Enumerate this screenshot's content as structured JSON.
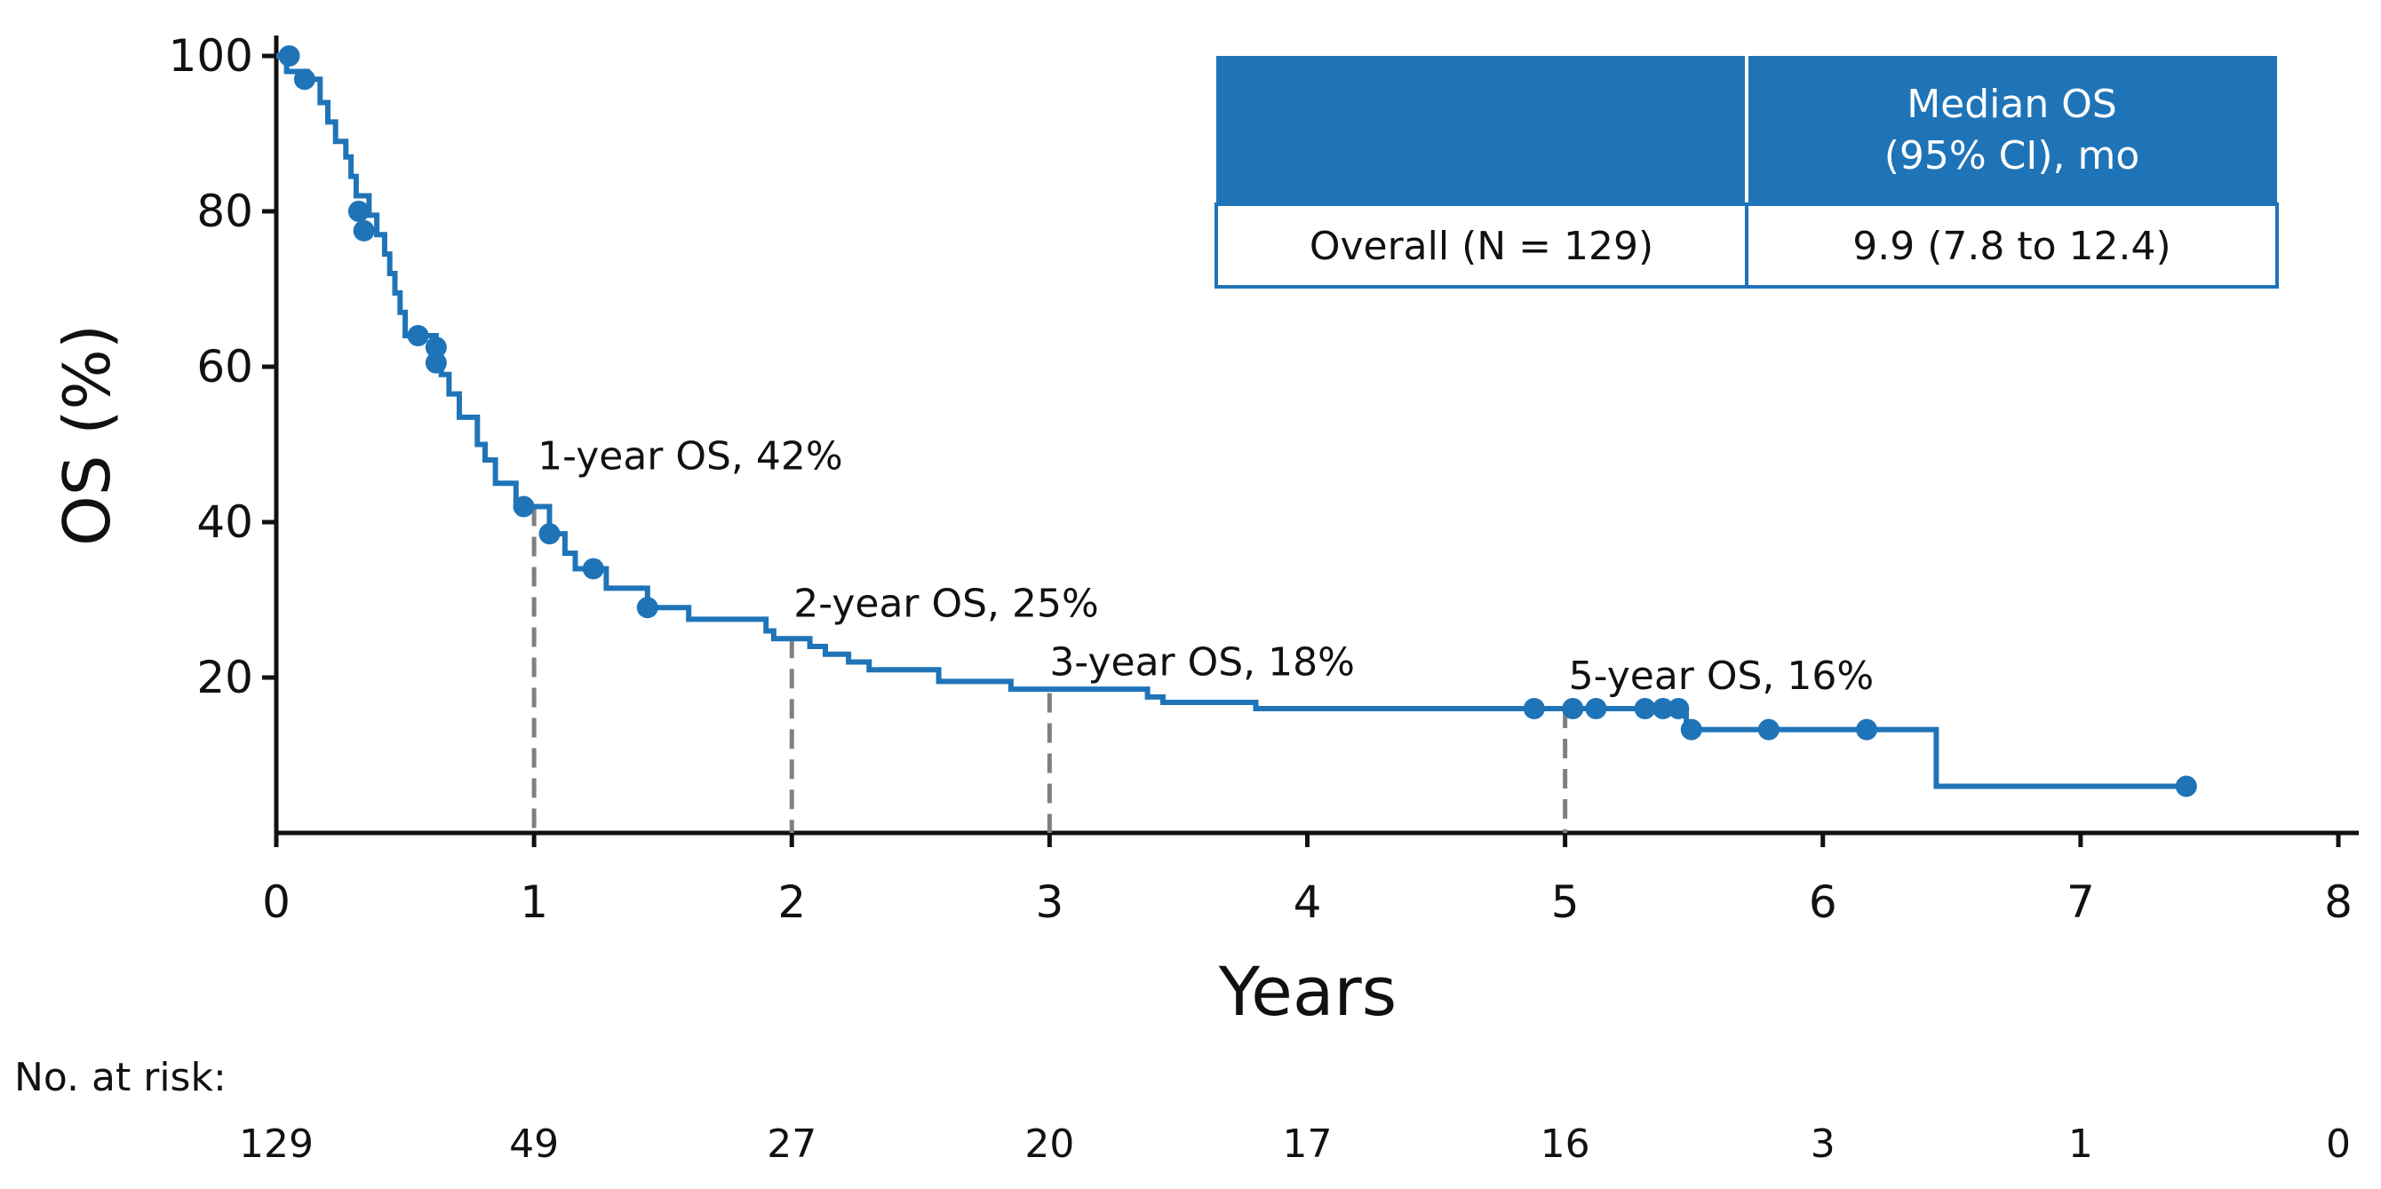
{
  "chart_data": {
    "type": "line",
    "xlabel": "Years",
    "ylabel": "OS (%)",
    "xlim": [
      0,
      8
    ],
    "ylim": [
      0,
      100
    ],
    "x_ticks": [
      0,
      1,
      2,
      3,
      4,
      5,
      6,
      7,
      8
    ],
    "y_ticks": [
      20,
      40,
      60,
      80,
      100
    ],
    "grid": false,
    "colors": {
      "curve": "#1f74b8",
      "guides": "#808080",
      "table_header": "#1f74b8"
    },
    "series": [
      {
        "step": [
          [
            0,
            100
          ],
          [
            0.04,
            100
          ],
          [
            0.04,
            98
          ],
          [
            0.12,
            98
          ],
          [
            0.12,
            97
          ],
          [
            0.17,
            97
          ],
          [
            0.17,
            94
          ],
          [
            0.2,
            94
          ],
          [
            0.2,
            91.5
          ],
          [
            0.23,
            91.5
          ],
          [
            0.23,
            89
          ],
          [
            0.27,
            89
          ],
          [
            0.27,
            87
          ],
          [
            0.29,
            87
          ],
          [
            0.29,
            84.5
          ],
          [
            0.31,
            84.5
          ],
          [
            0.31,
            82
          ],
          [
            0.36,
            82
          ],
          [
            0.36,
            79.5
          ],
          [
            0.39,
            79.5
          ],
          [
            0.39,
            77
          ],
          [
            0.42,
            77
          ],
          [
            0.42,
            74.5
          ],
          [
            0.44,
            74.5
          ],
          [
            0.44,
            72
          ],
          [
            0.46,
            72
          ],
          [
            0.46,
            69.5
          ],
          [
            0.48,
            69.5
          ],
          [
            0.48,
            67
          ],
          [
            0.5,
            67
          ],
          [
            0.5,
            64
          ],
          [
            0.62,
            64
          ],
          [
            0.62,
            61
          ],
          [
            0.64,
            61
          ],
          [
            0.64,
            59
          ],
          [
            0.67,
            59
          ],
          [
            0.67,
            56.5
          ],
          [
            0.71,
            56.5
          ],
          [
            0.71,
            53.5
          ],
          [
            0.78,
            53.5
          ],
          [
            0.78,
            50
          ],
          [
            0.81,
            50
          ],
          [
            0.81,
            48
          ],
          [
            0.85,
            48
          ],
          [
            0.85,
            45
          ],
          [
            0.93,
            45
          ],
          [
            0.93,
            42
          ],
          [
            1.06,
            42
          ],
          [
            1.06,
            38.5
          ],
          [
            1.12,
            38.5
          ],
          [
            1.12,
            36
          ],
          [
            1.16,
            36
          ],
          [
            1.16,
            34
          ],
          [
            1.28,
            34
          ],
          [
            1.28,
            31.5
          ],
          [
            1.44,
            31.5
          ],
          [
            1.44,
            29
          ],
          [
            1.6,
            29
          ],
          [
            1.6,
            27.5
          ],
          [
            1.9,
            27.5
          ],
          [
            1.9,
            26
          ],
          [
            1.93,
            26
          ],
          [
            1.93,
            25
          ],
          [
            2.07,
            25
          ],
          [
            2.07,
            24
          ],
          [
            2.13,
            24
          ],
          [
            2.13,
            23
          ],
          [
            2.22,
            23
          ],
          [
            2.22,
            22
          ],
          [
            2.3,
            22
          ],
          [
            2.3,
            21
          ],
          [
            2.57,
            21
          ],
          [
            2.57,
            19.5
          ],
          [
            2.85,
            19.5
          ],
          [
            2.85,
            18.5
          ],
          [
            3.38,
            18.5
          ],
          [
            3.38,
            17.5
          ],
          [
            3.44,
            17.5
          ],
          [
            3.44,
            16.8
          ],
          [
            3.8,
            16.8
          ],
          [
            3.8,
            16
          ],
          [
            5.47,
            16
          ],
          [
            5.47,
            13.3
          ],
          [
            6.44,
            13.3
          ],
          [
            6.44,
            6
          ],
          [
            7.41,
            6
          ]
        ],
        "censored": [
          [
            0.05,
            100
          ],
          [
            0.11,
            97
          ],
          [
            0.32,
            80
          ],
          [
            0.34,
            77.5
          ],
          [
            0.55,
            64
          ],
          [
            0.62,
            62.5
          ],
          [
            0.62,
            60.5
          ],
          [
            0.96,
            42
          ],
          [
            1.06,
            38.5
          ],
          [
            1.23,
            34
          ],
          [
            1.44,
            29
          ],
          [
            4.88,
            16
          ],
          [
            5.03,
            16
          ],
          [
            5.12,
            16
          ],
          [
            5.31,
            16
          ],
          [
            5.38,
            16
          ],
          [
            5.44,
            16
          ],
          [
            5.49,
            13.3
          ],
          [
            5.79,
            13.3
          ],
          [
            6.17,
            13.3
          ],
          [
            7.41,
            6
          ]
        ]
      }
    ],
    "annotations": [
      {
        "x": 1,
        "y": 42,
        "label": "1-year OS, 42%"
      },
      {
        "x": 2,
        "y": 25,
        "label": "2-year OS, 25%"
      },
      {
        "x": 3,
        "y": 18,
        "label": "3-year OS, 18%"
      },
      {
        "x": 5,
        "y": 16,
        "label": "5-year OS, 16%"
      }
    ],
    "table": {
      "header": [
        "",
        "Median OS",
        "(95% CI), mo"
      ],
      "row": [
        "Overall (N = 129)",
        "9.9 (7.8 to 12.4)"
      ]
    },
    "risk_table": {
      "title": "No. at risk:",
      "x": [
        0,
        1,
        2,
        3,
        4,
        5,
        6,
        7,
        8
      ],
      "values": [
        "129",
        "49",
        "27",
        "20",
        "17",
        "16",
        "3",
        "1",
        "0"
      ]
    }
  }
}
